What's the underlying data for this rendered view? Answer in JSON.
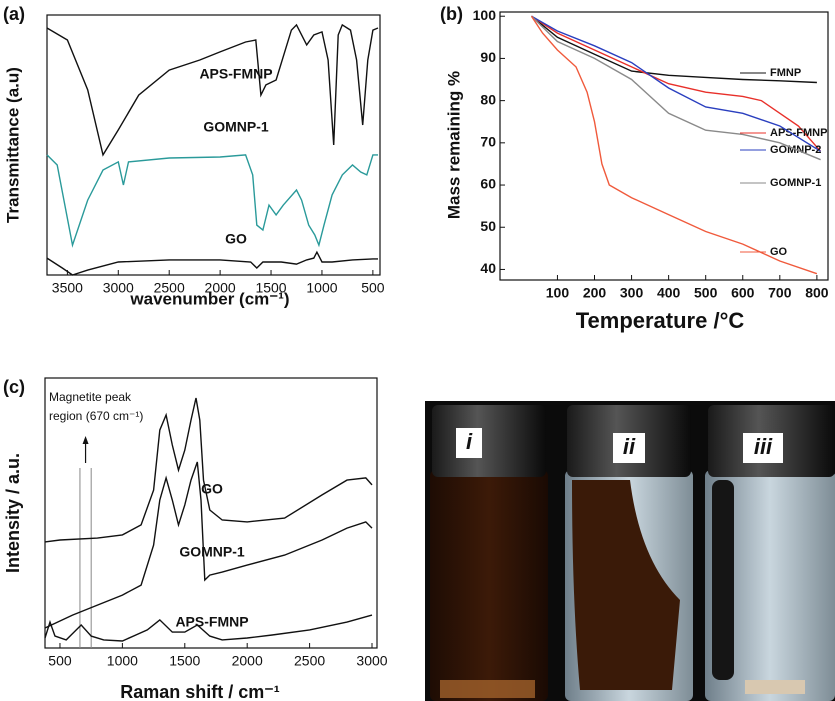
{
  "chart_data": [
    {
      "type": "line",
      "panel_label": "(a)",
      "xlabel": "wavenumber (cm⁻¹)",
      "ylabel": "Transmittance (a.u)",
      "xlim": [
        3700,
        430
      ],
      "xticks": [
        3500,
        3000,
        2500,
        2000,
        1500,
        1000,
        500
      ],
      "ylim": [
        0,
        100
      ],
      "series": [
        {
          "name": "APS-FMNP",
          "color": "#111111",
          "x": [
            3700,
            3500,
            3300,
            3150,
            3000,
            2800,
            2500,
            2200,
            2000,
            1750,
            1650,
            1600,
            1550,
            1450,
            1300,
            1250,
            1150,
            1080,
            1000,
            940,
            885,
            840,
            800,
            720,
            660,
            600,
            550,
            500,
            450
          ],
          "values": [
            95.0,
            90.4,
            71.2,
            46.2,
            55.8,
            69.2,
            78.8,
            82.7,
            85.8,
            89.6,
            90.4,
            69.2,
            73.1,
            75.0,
            94.2,
            96.2,
            88.5,
            92.3,
            93.5,
            82.7,
            50.0,
            92.3,
            96.2,
            94.2,
            82.7,
            57.7,
            82.7,
            94.2,
            95.0
          ]
        },
        {
          "name": "GOMNP-1",
          "color": "#2a9a9a",
          "x": [
            3700,
            3600,
            3450,
            3300,
            3150,
            3000,
            2950,
            2900,
            2500,
            2000,
            1750,
            1680,
            1640,
            1580,
            1520,
            1450,
            1380,
            1250,
            1200,
            1130,
            1070,
            1030,
            980,
            900,
            800,
            700,
            620,
            560,
            500,
            450
          ],
          "values": [
            46.2,
            42.3,
            11.5,
            28.8,
            40.4,
            43.5,
            34.6,
            43.5,
            45.0,
            45.4,
            46.2,
            38.5,
            19.2,
            17.3,
            26.9,
            23.1,
            26.9,
            32.7,
            28.8,
            19.2,
            15.4,
            11.5,
            19.2,
            30.8,
            38.5,
            42.3,
            39.6,
            38.5,
            46.2,
            46.2
          ]
        },
        {
          "name": "GO",
          "color": "#111111",
          "x": [
            3700,
            3550,
            3450,
            3300,
            3000,
            2500,
            2000,
            1700,
            1640,
            1580,
            1400,
            1250,
            1150,
            1080,
            1050,
            1000,
            900,
            700,
            500,
            450
          ],
          "values": [
            6.5,
            2.7,
            0,
            1.9,
            5.0,
            5.8,
            5.8,
            5.0,
            2.7,
            5.0,
            5.0,
            4.2,
            5.8,
            6.5,
            8.8,
            5.0,
            5.0,
            5.8,
            6.2,
            6.2
          ]
        }
      ]
    },
    {
      "type": "line",
      "panel_label": "(b)",
      "xlabel": "Temperature /°C",
      "ylabel": "Mass remaining %",
      "xlim": [
        -55,
        830
      ],
      "xticks": [
        100,
        200,
        300,
        400,
        500,
        600,
        700,
        800
      ],
      "ylim": [
        37.5,
        101
      ],
      "yticks": [
        40,
        50,
        60,
        70,
        80,
        90,
        100
      ],
      "series": [
        {
          "name": "FMNP",
          "color": "#111111",
          "x": [
            30,
            100,
            200,
            300,
            400,
            500,
            600,
            700,
            800
          ],
          "values": [
            100,
            95,
            91,
            87,
            86,
            85.5,
            85,
            84.7,
            84.3
          ]
        },
        {
          "name": "APS-FMNP",
          "color": "#e8302a",
          "x": [
            30,
            100,
            200,
            300,
            400,
            500,
            600,
            650,
            750,
            810
          ],
          "values": [
            100,
            96,
            92,
            88,
            84,
            82,
            81,
            80,
            74,
            68
          ]
        },
        {
          "name": "GOMNP-2",
          "color": "#2a3fbf",
          "x": [
            30,
            100,
            200,
            300,
            400,
            500,
            600,
            700,
            810
          ],
          "values": [
            100,
            96.5,
            93,
            89,
            83,
            78.5,
            77,
            74,
            68
          ]
        },
        {
          "name": "GOMNP-1",
          "color": "#8a8a8a",
          "x": [
            30,
            100,
            200,
            300,
            400,
            500,
            600,
            700,
            810
          ],
          "values": [
            100,
            94,
            90,
            85,
            77,
            73,
            72,
            70,
            66
          ]
        },
        {
          "name": "GO",
          "color": "#f05a3c",
          "x": [
            30,
            60,
            100,
            150,
            180,
            200,
            220,
            240,
            300,
            400,
            500,
            600,
            700,
            800
          ],
          "values": [
            100,
            96,
            92,
            88,
            82,
            75,
            65,
            60,
            57,
            53,
            49,
            46,
            42,
            39
          ]
        }
      ]
    },
    {
      "type": "line",
      "panel_label": "(c)",
      "xlabel": "Raman shift / cm⁻¹",
      "ylabel": "Intensity / a.u.",
      "annotations": [
        "Magnetite peak",
        "region (670 cm⁻¹)"
      ],
      "region_lines": [
        660,
        750
      ],
      "xlim": [
        380,
        3040
      ],
      "xticks": [
        500,
        1000,
        1500,
        2000,
        2500,
        3000
      ],
      "ylim": [
        0,
        100
      ],
      "series": [
        {
          "name": "GO",
          "color": "#111111",
          "x": [
            380,
            500,
            800,
            1000,
            1150,
            1250,
            1300,
            1350,
            1400,
            1450,
            1500,
            1550,
            1590,
            1620,
            1650,
            1700,
            1800,
            2000,
            2300,
            2600,
            2800,
            2950,
            3000
          ],
          "values": [
            39.3,
            40.0,
            40.7,
            41.9,
            45.6,
            58.5,
            80.7,
            86.3,
            75.2,
            65.9,
            73.3,
            84.4,
            92.6,
            84.4,
            62.2,
            51.1,
            47.4,
            46.7,
            48.1,
            56.7,
            62.2,
            63.0,
            60.4
          ]
        },
        {
          "name": "GOMNP-1",
          "color": "#111111",
          "x": [
            380,
            600,
            800,
            1000,
            1150,
            1250,
            1300,
            1350,
            1400,
            1450,
            1500,
            1550,
            1600,
            1630,
            1660,
            1700,
            1800,
            2000,
            2300,
            2600,
            2800,
            2950,
            3000
          ],
          "values": [
            7.4,
            12.2,
            15.9,
            19.6,
            23.3,
            38.1,
            54.8,
            63.0,
            54.8,
            45.6,
            53.0,
            62.2,
            68.9,
            54.8,
            25.2,
            27.0,
            28.1,
            30.7,
            34.4,
            40.0,
            44.4,
            46.7,
            44.4
          ]
        },
        {
          "name": "APS-FMNP",
          "color": "#111111",
          "x": [
            380,
            420,
            460,
            550,
            670,
            750,
            850,
            1000,
            1200,
            1300,
            1400,
            1500,
            1600,
            1700,
            1800,
            2000,
            2200,
            2500,
            2800,
            3000
          ],
          "values": [
            3.7,
            9.6,
            4.4,
            3.0,
            8.5,
            4.4,
            3.0,
            2.6,
            6.7,
            10.4,
            5.9,
            5.9,
            8.5,
            4.4,
            3.0,
            3.7,
            4.8,
            6.7,
            9.6,
            12.2
          ]
        }
      ]
    }
  ],
  "photo": {
    "vial_labels": [
      "i",
      "ii",
      "iii"
    ]
  }
}
